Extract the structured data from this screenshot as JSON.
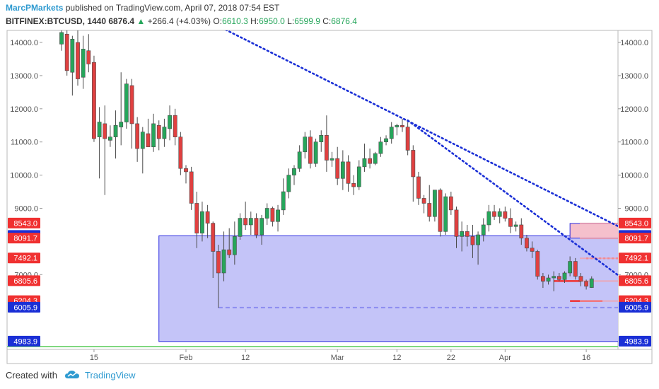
{
  "header": {
    "author": "MarcPMarkets",
    "published_text": "published on TradingView.com, April 07, 2018 07:54 EST"
  },
  "symbol_line": {
    "symbol": "BITFINEX:BTCUSD, 1440",
    "last": "6876.4",
    "change_arrow": "▲",
    "change": "+266.4 (+4.03%)",
    "o_label": "O:",
    "o_value": "6610.3",
    "h_label": "H:",
    "h_value": "6950.0",
    "l_label": "L:",
    "l_value": "6599.9",
    "c_label": "C:",
    "c_value": "6876.4"
  },
  "footer": {
    "created_with": "Created with",
    "brand": "TradingView"
  },
  "colors": {
    "up": "#26a65b",
    "down": "#e04040",
    "trendline": "#1a2fd6",
    "zone_fill": "#c4c4f8",
    "zone_border": "#2a2ae0",
    "resist_fill": "#f5c0cc",
    "axis_blue": "#1a2fd6",
    "axis_red": "#f03030"
  },
  "chart_data": {
    "type": "candlestick",
    "symbol": "BITFINEX:BTCUSD",
    "timeframe": "1440",
    "ylim": [
      4800,
      14500
    ],
    "y_ticks": [
      "14000.0",
      "13000.0",
      "12000.0",
      "11000.0",
      "10000.0",
      "9000.0",
      "7000.0"
    ],
    "x_ticks": [
      "15",
      "Feb",
      "12",
      "Mar",
      "12",
      "22",
      "Apr",
      "16"
    ],
    "x_tick_days": [
      -17,
      0,
      11,
      28,
      39,
      49,
      59,
      74
    ],
    "candles": [
      {
        "d": -23,
        "o": 13950,
        "h": 14450,
        "l": 13750,
        "c": 14300
      },
      {
        "d": -22,
        "o": 14250,
        "h": 14400,
        "l": 13000,
        "c": 13150
      },
      {
        "d": -21,
        "o": 13100,
        "h": 14200,
        "l": 12400,
        "c": 14100
      },
      {
        "d": -20,
        "o": 14000,
        "h": 14500,
        "l": 12700,
        "c": 12900
      },
      {
        "d": -19,
        "o": 12950,
        "h": 14200,
        "l": 12600,
        "c": 13800
      },
      {
        "d": -18,
        "o": 13750,
        "h": 14250,
        "l": 13100,
        "c": 13350
      },
      {
        "d": -17,
        "o": 13400,
        "h": 13600,
        "l": 11000,
        "c": 11100
      },
      {
        "d": -16,
        "o": 11150,
        "h": 12050,
        "l": 9900,
        "c": 11600
      },
      {
        "d": -15,
        "o": 11550,
        "h": 12100,
        "l": 9400,
        "c": 11100
      },
      {
        "d": -14,
        "o": 11050,
        "h": 11500,
        "l": 10850,
        "c": 11150
      },
      {
        "d": -13,
        "o": 11150,
        "h": 11950,
        "l": 10500,
        "c": 11500
      },
      {
        "d": -12,
        "o": 11450,
        "h": 13100,
        "l": 10900,
        "c": 11600
      },
      {
        "d": -11,
        "o": 11600,
        "h": 12900,
        "l": 11400,
        "c": 12750
      },
      {
        "d": -10,
        "o": 12700,
        "h": 12900,
        "l": 10800,
        "c": 11550
      },
      {
        "d": -9,
        "o": 11550,
        "h": 11750,
        "l": 10400,
        "c": 10800
      },
      {
        "d": -8,
        "o": 10800,
        "h": 11450,
        "l": 10050,
        "c": 11300
      },
      {
        "d": -7,
        "o": 11250,
        "h": 11700,
        "l": 10900,
        "c": 10850
      },
      {
        "d": -6,
        "o": 10850,
        "h": 11850,
        "l": 10700,
        "c": 11550
      },
      {
        "d": -5,
        "o": 11500,
        "h": 11650,
        "l": 10750,
        "c": 11100
      },
      {
        "d": -4,
        "o": 11100,
        "h": 11700,
        "l": 10850,
        "c": 11450
      },
      {
        "d": -3,
        "o": 11400,
        "h": 12100,
        "l": 11050,
        "c": 11800
      },
      {
        "d": -2,
        "o": 11800,
        "h": 12000,
        "l": 10900,
        "c": 11150
      },
      {
        "d": -1,
        "o": 11150,
        "h": 11300,
        "l": 10000,
        "c": 10200
      },
      {
        "d": 0,
        "o": 10200,
        "h": 10300,
        "l": 9750,
        "c": 10100
      },
      {
        "d": 1,
        "o": 10100,
        "h": 10250,
        "l": 8950,
        "c": 9150
      },
      {
        "d": 2,
        "o": 9150,
        "h": 9500,
        "l": 7800,
        "c": 8250
      },
      {
        "d": 3,
        "o": 8250,
        "h": 9200,
        "l": 8000,
        "c": 8900
      },
      {
        "d": 4,
        "o": 8900,
        "h": 9100,
        "l": 8100,
        "c": 8550
      },
      {
        "d": 5,
        "o": 8550,
        "h": 8600,
        "l": 6900,
        "c": 7700
      },
      {
        "d": 6,
        "o": 7700,
        "h": 7900,
        "l": 6000,
        "c": 7050
      },
      {
        "d": 7,
        "o": 7050,
        "h": 8300,
        "l": 6800,
        "c": 7750
      },
      {
        "d": 8,
        "o": 7750,
        "h": 8400,
        "l": 7500,
        "c": 7600
      },
      {
        "d": 9,
        "o": 7600,
        "h": 8600,
        "l": 7300,
        "c": 8150
      },
      {
        "d": 10,
        "o": 8150,
        "h": 8850,
        "l": 8050,
        "c": 8700
      },
      {
        "d": 11,
        "o": 8700,
        "h": 9200,
        "l": 8350,
        "c": 8500
      },
      {
        "d": 12,
        "o": 8500,
        "h": 8900,
        "l": 8200,
        "c": 8700
      },
      {
        "d": 13,
        "o": 8700,
        "h": 8850,
        "l": 8100,
        "c": 8200
      },
      {
        "d": 14,
        "o": 8200,
        "h": 8800,
        "l": 7900,
        "c": 8700
      },
      {
        "d": 15,
        "o": 8700,
        "h": 9150,
        "l": 8500,
        "c": 9000
      },
      {
        "d": 16,
        "o": 9000,
        "h": 9050,
        "l": 8450,
        "c": 8600
      },
      {
        "d": 17,
        "o": 8600,
        "h": 9100,
        "l": 8300,
        "c": 8950
      },
      {
        "d": 18,
        "o": 8950,
        "h": 9900,
        "l": 8800,
        "c": 9500
      },
      {
        "d": 19,
        "o": 9500,
        "h": 10200,
        "l": 9300,
        "c": 10000
      },
      {
        "d": 20,
        "o": 10000,
        "h": 10300,
        "l": 9700,
        "c": 10200
      },
      {
        "d": 21,
        "o": 10200,
        "h": 10900,
        "l": 10100,
        "c": 10700
      },
      {
        "d": 22,
        "o": 10700,
        "h": 11300,
        "l": 10500,
        "c": 11150
      },
      {
        "d": 23,
        "o": 11150,
        "h": 11350,
        "l": 10200,
        "c": 10350
      },
      {
        "d": 24,
        "o": 10350,
        "h": 11100,
        "l": 10250,
        "c": 11000
      },
      {
        "d": 25,
        "o": 11000,
        "h": 11350,
        "l": 10700,
        "c": 11200
      },
      {
        "d": 26,
        "o": 11200,
        "h": 11800,
        "l": 10100,
        "c": 10450
      },
      {
        "d": 27,
        "o": 10450,
        "h": 10700,
        "l": 10250,
        "c": 10500
      },
      {
        "d": 28,
        "o": 10500,
        "h": 10850,
        "l": 9700,
        "c": 9900
      },
      {
        "d": 29,
        "o": 9900,
        "h": 10750,
        "l": 9550,
        "c": 10400
      },
      {
        "d": 30,
        "o": 10400,
        "h": 10600,
        "l": 9500,
        "c": 9750
      },
      {
        "d": 31,
        "o": 9750,
        "h": 10000,
        "l": 9400,
        "c": 9650
      },
      {
        "d": 32,
        "o": 9650,
        "h": 10450,
        "l": 9550,
        "c": 10250
      },
      {
        "d": 33,
        "o": 10250,
        "h": 10950,
        "l": 10100,
        "c": 10500
      },
      {
        "d": 34,
        "o": 10500,
        "h": 10800,
        "l": 10200,
        "c": 10350
      },
      {
        "d": 35,
        "o": 10350,
        "h": 10700,
        "l": 10300,
        "c": 10650
      },
      {
        "d": 36,
        "o": 10650,
        "h": 11150,
        "l": 10550,
        "c": 11000
      },
      {
        "d": 37,
        "o": 11000,
        "h": 11200,
        "l": 10900,
        "c": 11100
      },
      {
        "d": 38,
        "o": 11100,
        "h": 11600,
        "l": 10950,
        "c": 11450
      },
      {
        "d": 39,
        "o": 11450,
        "h": 11550,
        "l": 11200,
        "c": 11500
      },
      {
        "d": 40,
        "o": 11500,
        "h": 11700,
        "l": 11300,
        "c": 11450
      },
      {
        "d": 41,
        "o": 11450,
        "h": 11600,
        "l": 10600,
        "c": 10750
      },
      {
        "d": 42,
        "o": 10750,
        "h": 10900,
        "l": 9200,
        "c": 9950
      },
      {
        "d": 43,
        "o": 9950,
        "h": 10100,
        "l": 9100,
        "c": 9300
      },
      {
        "d": 44,
        "o": 9300,
        "h": 9400,
        "l": 8850,
        "c": 9150
      },
      {
        "d": 45,
        "o": 9150,
        "h": 9700,
        "l": 8600,
        "c": 8750
      },
      {
        "d": 46,
        "o": 8750,
        "h": 9550,
        "l": 8600,
        "c": 9550
      },
      {
        "d": 47,
        "o": 9550,
        "h": 9600,
        "l": 8150,
        "c": 8300
      },
      {
        "d": 48,
        "o": 8300,
        "h": 9450,
        "l": 8200,
        "c": 9350
      },
      {
        "d": 49,
        "o": 9350,
        "h": 9500,
        "l": 8800,
        "c": 8950
      },
      {
        "d": 50,
        "o": 8950,
        "h": 9050,
        "l": 7800,
        "c": 8150
      },
      {
        "d": 51,
        "o": 8150,
        "h": 8600,
        "l": 7700,
        "c": 8300
      },
      {
        "d": 52,
        "o": 8300,
        "h": 8500,
        "l": 7850,
        "c": 8150
      },
      {
        "d": 53,
        "o": 8150,
        "h": 8500,
        "l": 7500,
        "c": 7900
      },
      {
        "d": 54,
        "o": 7900,
        "h": 8300,
        "l": 7300,
        "c": 8200
      },
      {
        "d": 55,
        "o": 8200,
        "h": 8700,
        "l": 8000,
        "c": 8500
      },
      {
        "d": 56,
        "o": 8500,
        "h": 9100,
        "l": 8300,
        "c": 8900
      },
      {
        "d": 57,
        "o": 8900,
        "h": 9100,
        "l": 8650,
        "c": 8750
      },
      {
        "d": 58,
        "o": 8750,
        "h": 9000,
        "l": 8550,
        "c": 8900
      },
      {
        "d": 59,
        "o": 8900,
        "h": 9050,
        "l": 8600,
        "c": 8700
      },
      {
        "d": 60,
        "o": 8700,
        "h": 9000,
        "l": 8250,
        "c": 8450
      },
      {
        "d": 61,
        "o": 8450,
        "h": 8600,
        "l": 8300,
        "c": 8500
      },
      {
        "d": 62,
        "o": 8500,
        "h": 8700,
        "l": 7900,
        "c": 8100
      },
      {
        "d": 63,
        "o": 8100,
        "h": 8200,
        "l": 7700,
        "c": 7800
      },
      {
        "d": 64,
        "o": 7800,
        "h": 8000,
        "l": 7500,
        "c": 7700
      },
      {
        "d": 65,
        "o": 7700,
        "h": 7750,
        "l": 6850,
        "c": 6950
      },
      {
        "d": 66,
        "o": 6950,
        "h": 7050,
        "l": 6600,
        "c": 6800
      },
      {
        "d": 67,
        "o": 6800,
        "h": 7000,
        "l": 6700,
        "c": 6900
      },
      {
        "d": 68,
        "o": 6900,
        "h": 7100,
        "l": 6500,
        "c": 6950
      },
      {
        "d": 69,
        "o": 6950,
        "h": 7050,
        "l": 6800,
        "c": 6850
      },
      {
        "d": 70,
        "o": 6850,
        "h": 7100,
        "l": 6750,
        "c": 7050
      },
      {
        "d": 71,
        "o": 7050,
        "h": 7550,
        "l": 6950,
        "c": 7400
      },
      {
        "d": 72,
        "o": 7400,
        "h": 7500,
        "l": 6850,
        "c": 6950
      },
      {
        "d": 73,
        "o": 6950,
        "h": 7050,
        "l": 6650,
        "c": 6800
      },
      {
        "d": 74,
        "o": 6800,
        "h": 6850,
        "l": 6550,
        "c": 6650
      },
      {
        "d": 75,
        "o": 6610,
        "h": 6950,
        "l": 6600,
        "c": 6876
      }
    ],
    "trendlines": [
      {
        "name": "upper-trendline",
        "d1": 1,
        "p1": 14900,
        "d2": 80,
        "p2": 8450
      },
      {
        "name": "lower-trendline",
        "d1": 41,
        "p1": 11650,
        "d2": 81,
        "p2": 6850
      }
    ],
    "zones": [
      {
        "name": "support-zone",
        "d1": -5,
        "d2": 113,
        "top": 8171.1,
        "bottom": 4983.9
      },
      {
        "name": "resistance-zone",
        "d1": 71,
        "d2": 93,
        "top": 8543.0,
        "bottom": 8100
      }
    ],
    "lines": [
      {
        "name": "feb-low-dashed",
        "d1": 6,
        "d2": 113,
        "price": 6005.9,
        "style": "dashed",
        "color": "#8c8cf0"
      },
      {
        "name": "red-line-6805",
        "d1": 68,
        "d2": 73,
        "price": 6805.6,
        "style": "solid",
        "color": "#f03030"
      },
      {
        "name": "red-line-6204",
        "d1": 71,
        "d2": 77,
        "price": 6204.3,
        "style": "solid",
        "color": "#f03030"
      },
      {
        "name": "red-dotted-7492",
        "d1": 74,
        "d2": 83,
        "price": 7492.1,
        "style": "dotted",
        "color": "#f03030"
      }
    ],
    "price_labels": [
      {
        "text": "8543.0",
        "value": 8543.0,
        "color": "#f03030"
      },
      {
        "text": "8171.1",
        "value": 8171.1,
        "color": "#1a2fd6"
      },
      {
        "text": "8091.7",
        "value": 8091.7,
        "color": "#f03030"
      },
      {
        "text": "7492.1",
        "value": 7492.1,
        "color": "#f03030"
      },
      {
        "text": "6805.6",
        "value": 6805.6,
        "color": "#f03030"
      },
      {
        "text": "6204.3",
        "value": 6204.3,
        "color": "#f03030"
      },
      {
        "text": "6005.9",
        "value": 6005.9,
        "color": "#1a2fd6"
      },
      {
        "text": "4983.9",
        "value": 4983.9,
        "color": "#1a2fd6"
      }
    ]
  }
}
